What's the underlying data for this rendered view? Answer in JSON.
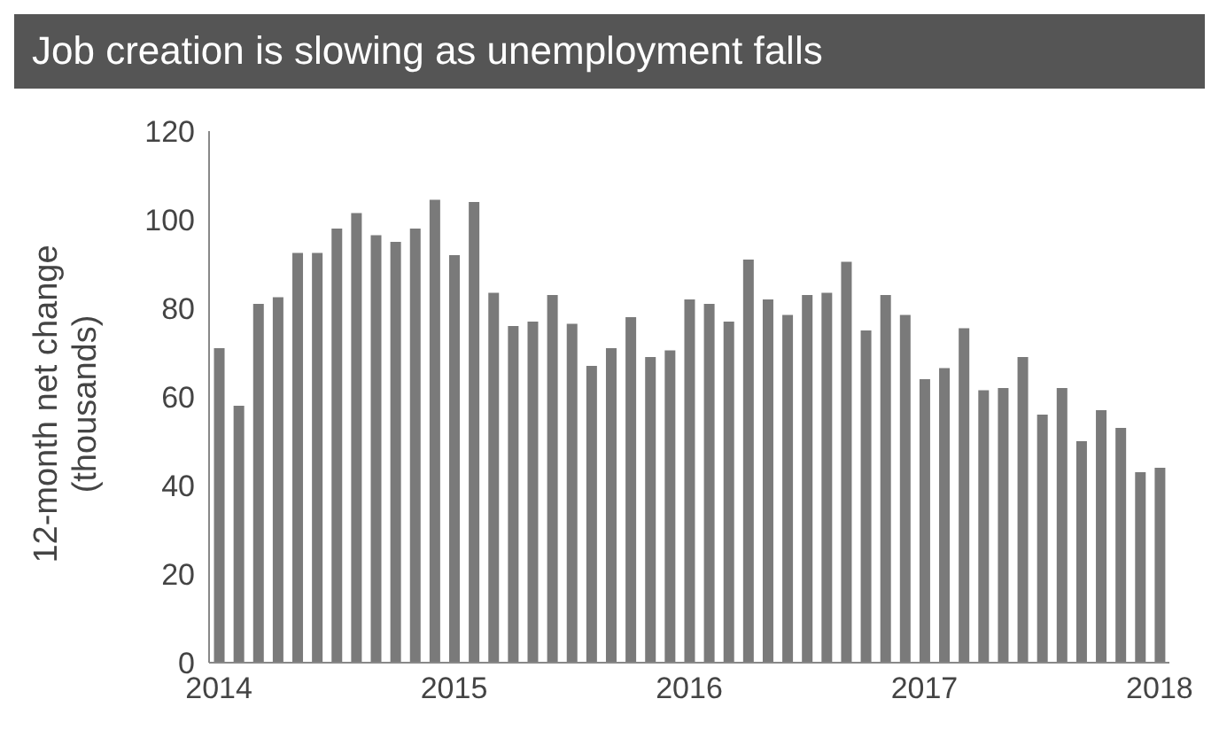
{
  "chart_data": {
    "type": "bar",
    "title": "Job creation is slowing as unemployment falls",
    "ylabel": "12-month net change (thousands)",
    "categories": [
      "2014",
      null,
      null,
      null,
      null,
      null,
      null,
      null,
      null,
      null,
      null,
      null,
      "2015",
      null,
      null,
      null,
      null,
      null,
      null,
      null,
      null,
      null,
      null,
      null,
      "2016",
      null,
      null,
      null,
      null,
      null,
      null,
      null,
      null,
      null,
      null,
      null,
      "2017",
      null,
      null,
      null,
      null,
      null,
      null,
      null,
      null,
      null,
      null,
      null,
      "2018"
    ],
    "values": [
      71,
      58,
      81,
      82.5,
      92.5,
      92.5,
      98,
      101.5,
      96.5,
      95,
      98,
      104.5,
      92,
      104,
      83.5,
      76,
      77,
      83,
      76.5,
      67,
      71,
      78,
      69,
      70.5,
      82,
      81,
      77,
      91,
      82,
      78.5,
      83,
      83.5,
      90.5,
      75,
      83,
      78.5,
      64,
      66.5,
      75.5,
      61.5,
      62,
      69,
      56,
      62,
      50,
      57,
      53,
      43,
      44
    ],
    "color": "#7a7a7a",
    "ylim": [
      0,
      120
    ],
    "yticks": [
      0,
      20,
      40,
      60,
      80,
      100,
      120
    ],
    "grid": false,
    "legend": false
  }
}
